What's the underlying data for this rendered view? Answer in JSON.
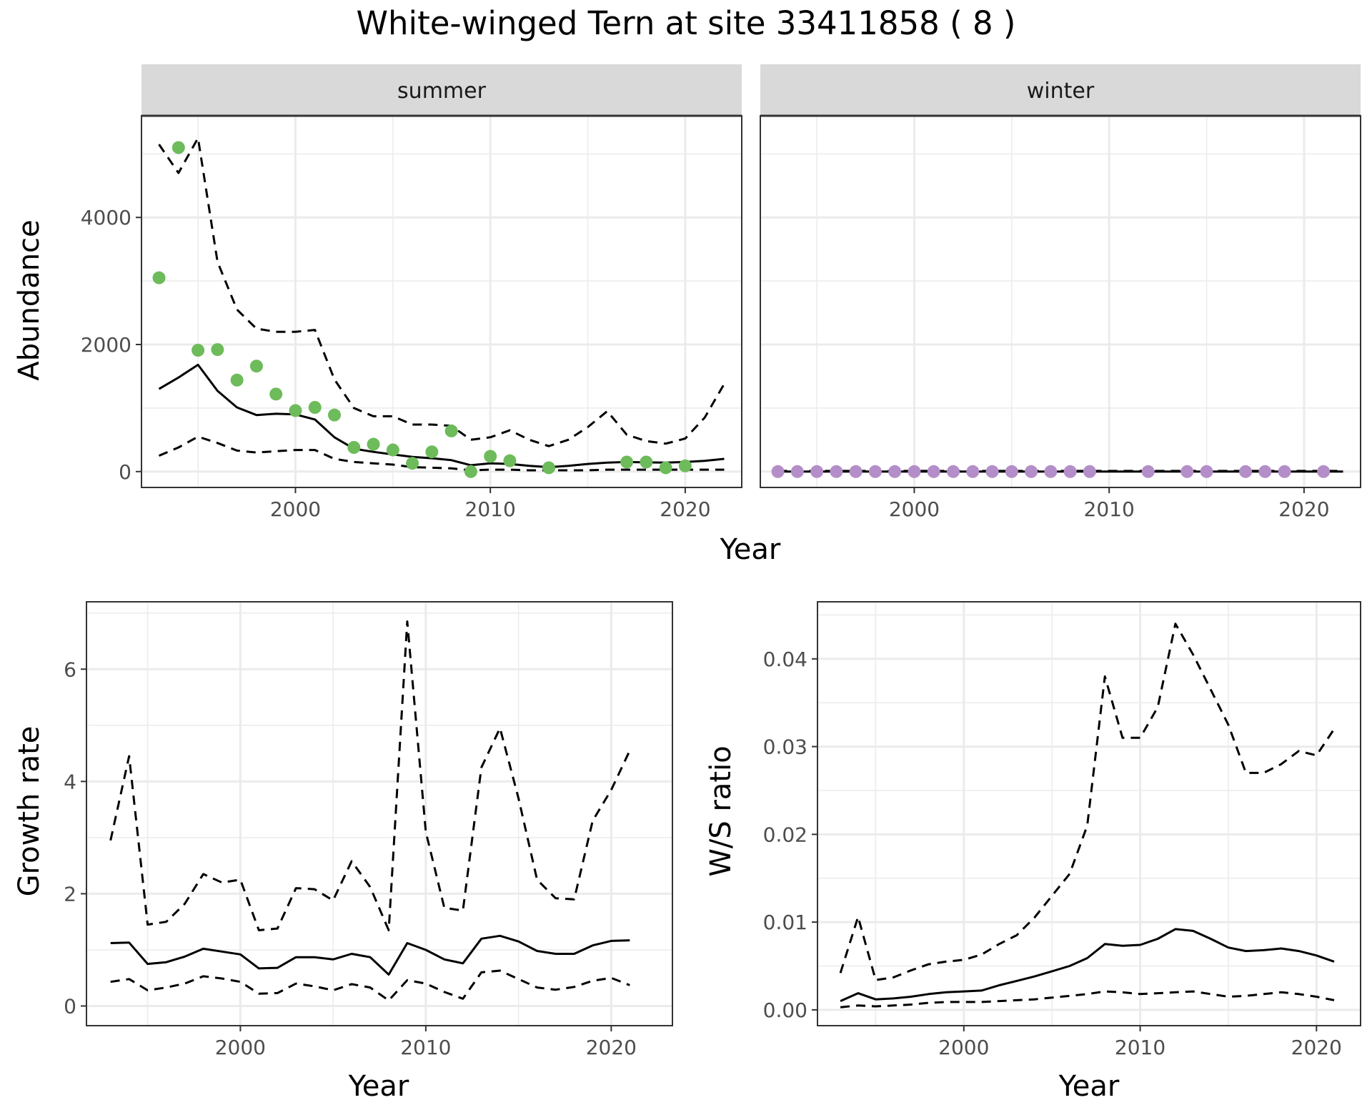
{
  "title": "White-winged Tern at site 33411858 ( 8 )",
  "colors": {
    "summer_points": "#6dbb5a",
    "winter_points": "#b48ec8",
    "lines": "#000000",
    "grid": "#ebebeb",
    "strip_bg": "#d9d9d9"
  },
  "chart_data": [
    {
      "id": "abundance-summer",
      "type": "line",
      "panel": "summer",
      "title": "",
      "xlabel": "Year",
      "ylabel": "Abundance",
      "xlim": [
        1992.1,
        2022.9
      ],
      "ylim": [
        -250,
        5600
      ],
      "xticks": [
        2000,
        2010,
        2020
      ],
      "yticks": [
        0,
        2000,
        4000
      ],
      "x": [
        1993,
        1994,
        1995,
        1996,
        1997,
        1998,
        1999,
        2000,
        2001,
        2002,
        2003,
        2004,
        2005,
        2006,
        2007,
        2008,
        2009,
        2010,
        2011,
        2012,
        2013,
        2014,
        2015,
        2016,
        2017,
        2018,
        2019,
        2020,
        2021,
        2022
      ],
      "series": [
        {
          "name": "mean",
          "style": "solid",
          "values": [
            1300,
            1480,
            1680,
            1270,
            1010,
            890,
            910,
            900,
            820,
            540,
            360,
            310,
            270,
            230,
            210,
            180,
            100,
            130,
            120,
            90,
            70,
            90,
            120,
            140,
            150,
            145,
            140,
            150,
            170,
            200
          ]
        },
        {
          "name": "upper",
          "style": "dashed",
          "values": [
            5150,
            4700,
            5250,
            3300,
            2550,
            2250,
            2200,
            2200,
            2230,
            1450,
            1000,
            870,
            870,
            740,
            740,
            720,
            500,
            540,
            650,
            500,
            400,
            500,
            700,
            950,
            580,
            480,
            440,
            520,
            850,
            1380
          ]
        },
        {
          "name": "lower",
          "style": "dashed",
          "values": [
            250,
            380,
            550,
            450,
            330,
            300,
            320,
            340,
            340,
            200,
            150,
            130,
            110,
            70,
            60,
            50,
            20,
            30,
            30,
            20,
            20,
            20,
            20,
            30,
            30,
            30,
            30,
            30,
            30,
            30
          ]
        }
      ],
      "points": {
        "name": "observed",
        "x": [
          1993,
          1994,
          1995,
          1996,
          1997,
          1998,
          1999,
          2000,
          2001,
          2002,
          2003,
          2004,
          2005,
          2006,
          2007,
          2008,
          2009,
          2010,
          2011,
          2013,
          2017,
          2018,
          2019,
          2020
        ],
        "y": [
          3050,
          5100,
          1910,
          1920,
          1440,
          1660,
          1220,
          960,
          1010,
          890,
          380,
          430,
          340,
          130,
          310,
          640,
          0,
          240,
          170,
          60,
          150,
          150,
          60,
          90
        ]
      }
    },
    {
      "id": "abundance-winter",
      "type": "line",
      "panel": "winter",
      "title": "",
      "xlabel": "Year",
      "ylabel": "",
      "xlim": [
        1992.1,
        2022.9
      ],
      "ylim": [
        -250,
        5600
      ],
      "xticks": [
        2000,
        2010,
        2020
      ],
      "yticks": [],
      "x": [
        1993,
        1994,
        1995,
        1996,
        1997,
        1998,
        1999,
        2000,
        2001,
        2002,
        2003,
        2004,
        2005,
        2006,
        2007,
        2008,
        2009,
        2010,
        2011,
        2012,
        2013,
        2014,
        2015,
        2016,
        2017,
        2018,
        2019,
        2020,
        2021,
        2022
      ],
      "series": [
        {
          "name": "mean",
          "style": "solid",
          "values": [
            0,
            0,
            0,
            0,
            0,
            0,
            0,
            0,
            0,
            0,
            0,
            0,
            0,
            0,
            0,
            0,
            0,
            0,
            0,
            0,
            0,
            0,
            0,
            0,
            0,
            0,
            0,
            0,
            0,
            0
          ]
        },
        {
          "name": "upper",
          "style": "dashed",
          "values": [
            10,
            10,
            10,
            10,
            10,
            10,
            10,
            10,
            10,
            10,
            10,
            10,
            10,
            10,
            10,
            10,
            10,
            10,
            10,
            10,
            10,
            10,
            10,
            10,
            10,
            10,
            10,
            10,
            10,
            10
          ]
        }
      ],
      "points": {
        "name": "observed",
        "x": [
          1993,
          1994,
          1995,
          1996,
          1997,
          1998,
          1999,
          2000,
          2001,
          2002,
          2003,
          2004,
          2005,
          2006,
          2007,
          2008,
          2009,
          2012,
          2014,
          2015,
          2017,
          2018,
          2019,
          2021
        ],
        "y": [
          0,
          0,
          0,
          0,
          0,
          0,
          0,
          0,
          0,
          0,
          0,
          0,
          0,
          0,
          0,
          0,
          0,
          0,
          0,
          0,
          0,
          0,
          0,
          0
        ]
      }
    },
    {
      "id": "growth-rate",
      "type": "line",
      "title": "",
      "xlabel": "Year",
      "ylabel": "Growth rate",
      "xlim": [
        1991.7,
        2023.3
      ],
      "ylim": [
        -0.35,
        7.2
      ],
      "xticks": [
        2000,
        2010,
        2020
      ],
      "yticks": [
        0,
        2,
        4,
        6
      ],
      "x": [
        1993,
        1994,
        1995,
        1996,
        1997,
        1998,
        1999,
        2000,
        2001,
        2002,
        2003,
        2004,
        2005,
        2006,
        2007,
        2008,
        2009,
        2010,
        2011,
        2012,
        2013,
        2014,
        2015,
        2016,
        2017,
        2018,
        2019,
        2020,
        2021
      ],
      "series": [
        {
          "name": "mean",
          "style": "solid",
          "values": [
            1.12,
            1.13,
            0.75,
            0.78,
            0.88,
            1.02,
            0.97,
            0.92,
            0.67,
            0.68,
            0.87,
            0.87,
            0.83,
            0.93,
            0.87,
            0.56,
            1.12,
            1.0,
            0.83,
            0.76,
            1.2,
            1.25,
            1.15,
            0.98,
            0.93,
            0.93,
            1.08,
            1.16,
            1.17
          ]
        },
        {
          "name": "upper",
          "style": "dashed",
          "values": [
            2.95,
            4.45,
            1.45,
            1.5,
            1.82,
            2.35,
            2.2,
            2.25,
            1.35,
            1.38,
            2.1,
            2.08,
            1.88,
            2.58,
            2.12,
            1.35,
            6.85,
            3.1,
            1.75,
            1.7,
            4.25,
            4.95,
            3.7,
            2.25,
            1.92,
            1.9,
            3.3,
            3.85,
            4.55
          ]
        },
        {
          "name": "lower",
          "style": "dashed",
          "values": [
            0.43,
            0.48,
            0.28,
            0.33,
            0.4,
            0.53,
            0.49,
            0.43,
            0.22,
            0.23,
            0.4,
            0.35,
            0.28,
            0.39,
            0.33,
            0.1,
            0.46,
            0.4,
            0.25,
            0.13,
            0.6,
            0.63,
            0.48,
            0.33,
            0.29,
            0.34,
            0.45,
            0.5,
            0.37
          ]
        }
      ]
    },
    {
      "id": "ws-ratio",
      "type": "line",
      "title": "",
      "xlabel": "Year",
      "ylabel": "W/S ratio",
      "xlim": [
        1991.7,
        2022.5
      ],
      "ylim": [
        -0.0018,
        0.0465
      ],
      "xticks": [
        2000,
        2010,
        2020
      ],
      "yticks": [
        0.0,
        0.01,
        0.02,
        0.03,
        0.04
      ],
      "ytick_labels": [
        "0.00",
        "0.01",
        "0.02",
        "0.03",
        "0.04"
      ],
      "x": [
        1993,
        1994,
        1995,
        1996,
        1997,
        1998,
        1999,
        2000,
        2001,
        2002,
        2003,
        2004,
        2005,
        2006,
        2007,
        2008,
        2009,
        2010,
        2011,
        2012,
        2013,
        2014,
        2015,
        2016,
        2017,
        2018,
        2019,
        2020,
        2021
      ],
      "series": [
        {
          "name": "mean",
          "style": "solid",
          "values": [
            0.001,
            0.0019,
            0.0012,
            0.0013,
            0.0015,
            0.0018,
            0.002,
            0.0021,
            0.0022,
            0.0028,
            0.0033,
            0.0038,
            0.0044,
            0.005,
            0.0059,
            0.0075,
            0.0073,
            0.0074,
            0.0081,
            0.0092,
            0.009,
            0.0081,
            0.0071,
            0.0067,
            0.0068,
            0.007,
            0.0067,
            0.0062,
            0.0055
          ]
        },
        {
          "name": "upper",
          "style": "dashed",
          "values": [
            0.0042,
            0.0106,
            0.0034,
            0.0037,
            0.0045,
            0.0052,
            0.0055,
            0.0057,
            0.0063,
            0.0075,
            0.0085,
            0.0105,
            0.013,
            0.0155,
            0.021,
            0.038,
            0.031,
            0.031,
            0.0345,
            0.044,
            0.0405,
            0.0365,
            0.0325,
            0.027,
            0.027,
            0.028,
            0.0295,
            0.029,
            0.032
          ]
        },
        {
          "name": "lower",
          "style": "dashed",
          "values": [
            0.0003,
            0.0005,
            0.0004,
            0.0005,
            0.0006,
            0.0008,
            0.0009,
            0.0009,
            0.0009,
            0.001,
            0.0011,
            0.0012,
            0.0014,
            0.0016,
            0.0018,
            0.0021,
            0.002,
            0.0018,
            0.0019,
            0.002,
            0.0021,
            0.0018,
            0.0015,
            0.0016,
            0.0018,
            0.002,
            0.0018,
            0.0015,
            0.0011
          ]
        }
      ]
    }
  ],
  "panels": {
    "summer_strip": "summer",
    "winter_strip": "winter",
    "top_xlabel": "Year",
    "top_ylabel": "Abundance",
    "growth_xlabel": "Year",
    "growth_ylabel": "Growth rate",
    "ws_xlabel": "Year",
    "ws_ylabel": "W/S ratio"
  }
}
